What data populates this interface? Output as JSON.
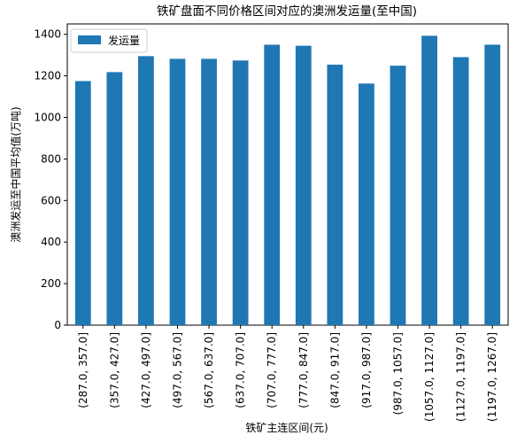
{
  "chart_data": {
    "type": "bar",
    "title": "铁矿盘面不同价格区间对应的澳洲发运量(至中国)",
    "xlabel": "铁矿主连区间(元)",
    "ylabel": "澳洲发运至中国平均值(万吨)",
    "ylim": [
      0,
      1450
    ],
    "yticks": [
      0,
      200,
      400,
      600,
      800,
      1000,
      1200,
      1400
    ],
    "grid": false,
    "legend_position": "top-left",
    "categories": [
      "(287.0, 357.0]",
      "(357.0, 427.0]",
      "(427.0, 497.0]",
      "(497.0, 567.0]",
      "(567.0, 637.0]",
      "(637.0, 707.0]",
      "(707.0, 777.0]",
      "(777.0, 847.0]",
      "(847.0, 917.0]",
      "(917.0, 987.0]",
      "(987.0, 1057.0]",
      "(1057.0, 1127.0]",
      "(1127.0, 1197.0]",
      "(1197.0, 1267.0]"
    ],
    "series": [
      {
        "name": "发运量",
        "color": "#1f77b4",
        "values": [
          1175,
          1218,
          1295,
          1282,
          1282,
          1274,
          1350,
          1345,
          1254,
          1163,
          1249,
          1393,
          1290,
          1350
        ]
      }
    ]
  }
}
